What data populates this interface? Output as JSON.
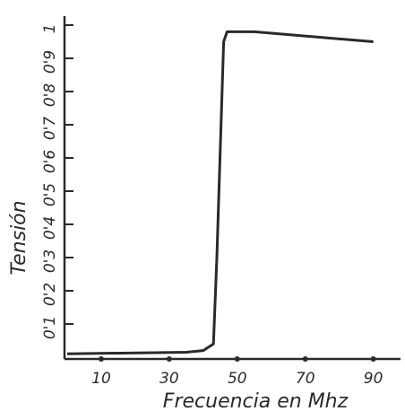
{
  "chart_data": {
    "type": "line",
    "x_label": "Frecuencia en Mhz",
    "y_label": "Tensión",
    "x": [
      0,
      35,
      40,
      43,
      44,
      46,
      47,
      55,
      90
    ],
    "series": [
      {
        "color": "#2a2a2a",
        "values": [
          0.01,
          0.015,
          0.02,
          0.04,
          0.3,
          0.95,
          0.98,
          0.98,
          0.95
        ]
      }
    ],
    "xlim": [
      0,
      98
    ],
    "ylim": [
      0,
      1
    ],
    "xticks": [
      10,
      30,
      50,
      70,
      90
    ],
    "yticks": [
      {
        "value": 0.1,
        "label": "0'1"
      },
      {
        "value": 0.2,
        "label": "0'2"
      },
      {
        "value": 0.3,
        "label": "0'3"
      },
      {
        "value": 0.4,
        "label": "0'4"
      },
      {
        "value": 0.5,
        "label": "0'5"
      },
      {
        "value": 0.6,
        "label": "0'6"
      },
      {
        "value": 0.7,
        "label": "0'7"
      },
      {
        "value": 0.8,
        "label": "0'8"
      },
      {
        "value": 0.9,
        "label": "0'9"
      },
      1
    ]
  }
}
